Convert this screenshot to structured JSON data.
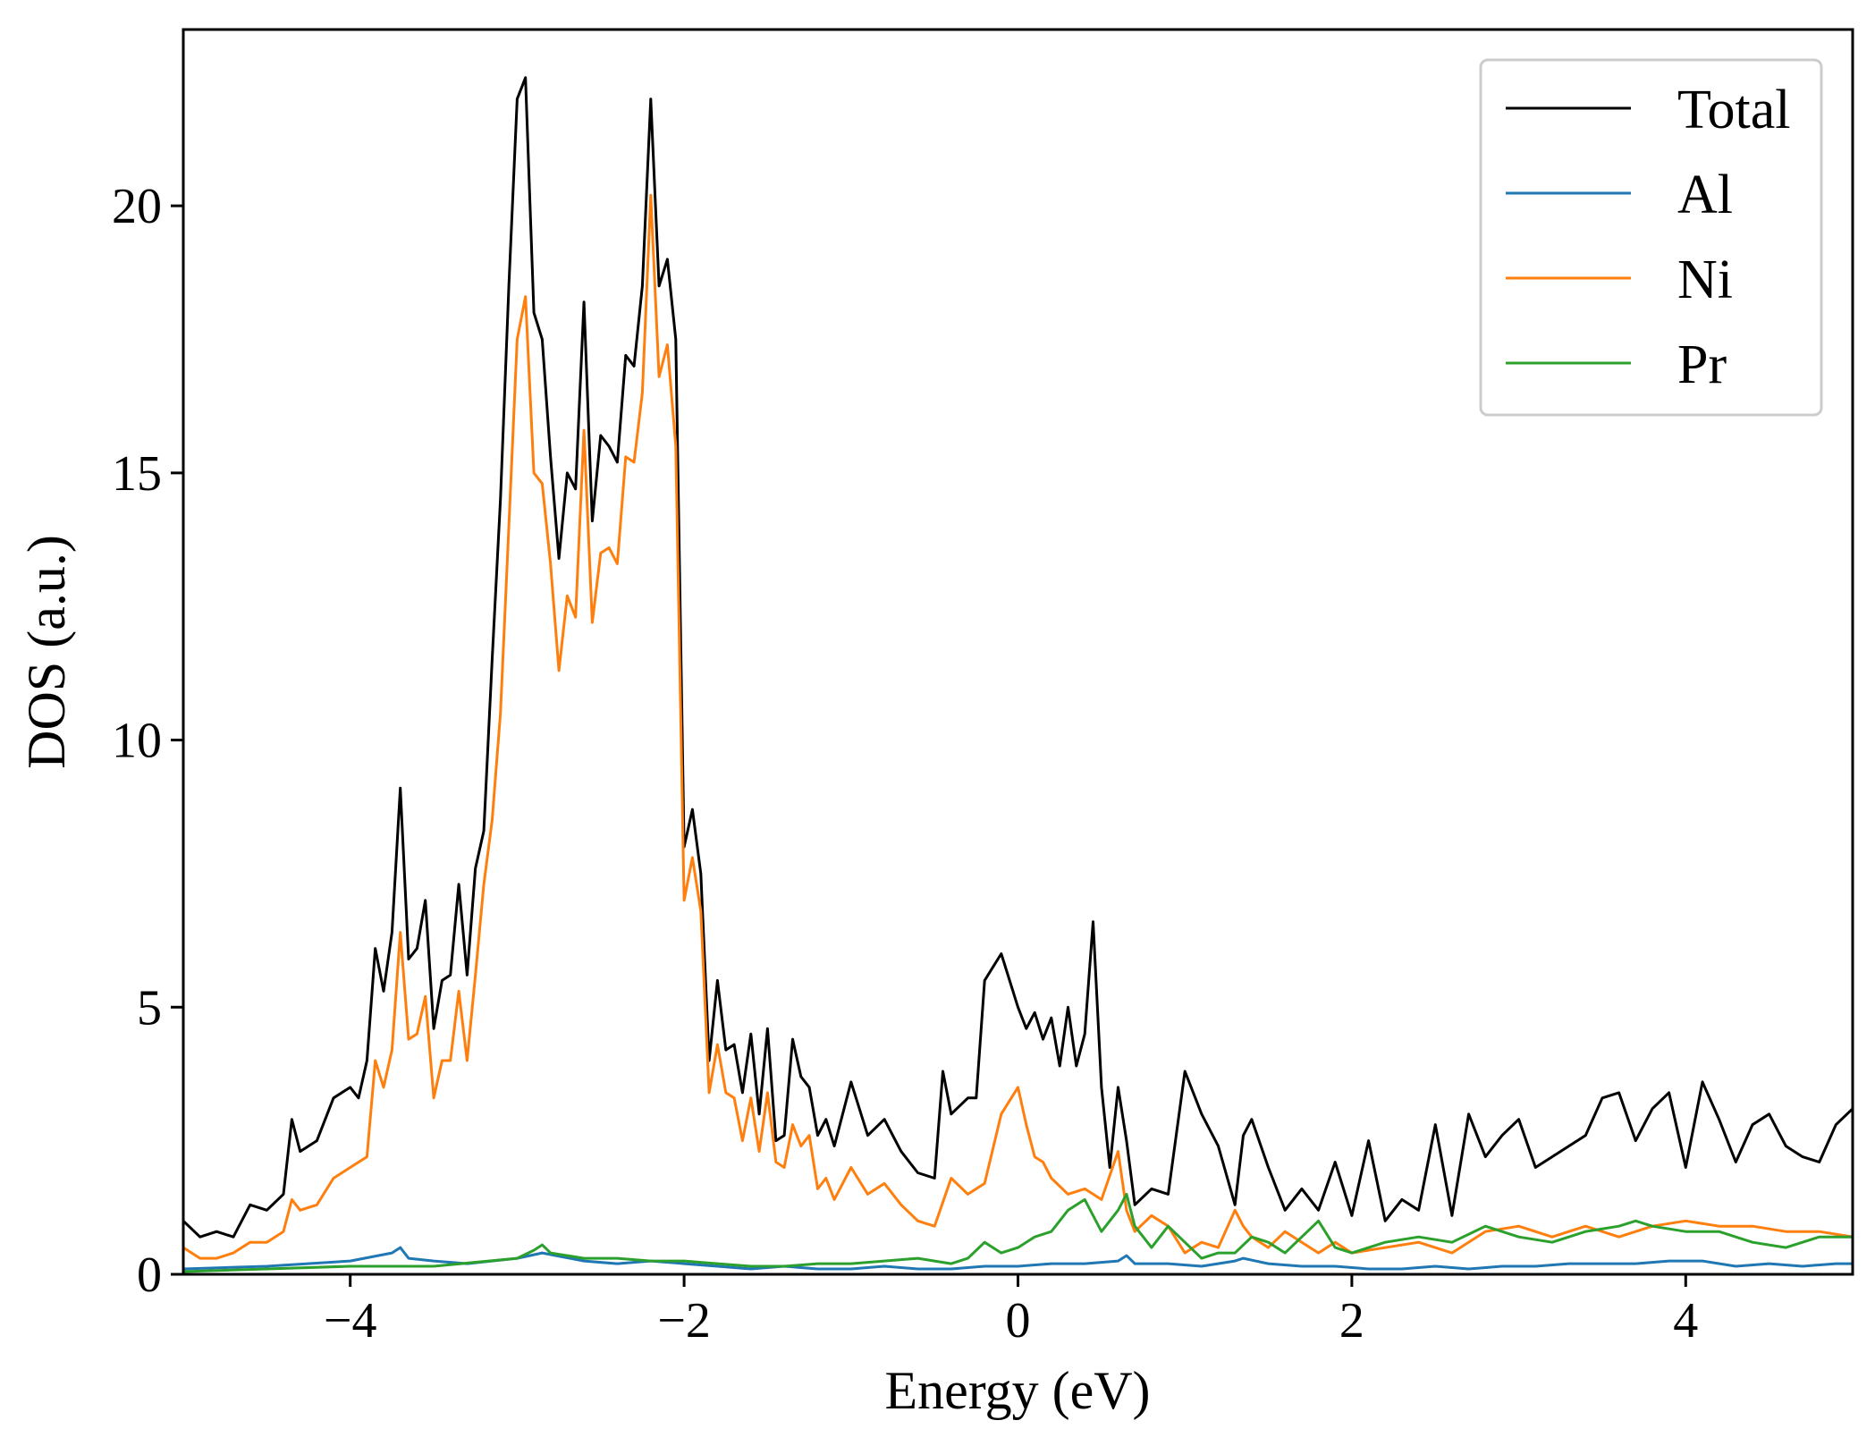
{
  "chart_data": {
    "type": "line",
    "xlabel": "Energy (eV)",
    "ylabel": "DOS (a.u.)",
    "xlim": [
      -5,
      5
    ],
    "ylim": [
      0,
      23.3
    ],
    "xticks": [
      -4,
      -2,
      0,
      2,
      4
    ],
    "xtick_labels": [
      "−4",
      "−2",
      "0",
      "2",
      "4"
    ],
    "yticks": [
      0,
      5,
      10,
      15,
      20
    ],
    "ytick_labels": [
      "0",
      "5",
      "10",
      "15",
      "20"
    ],
    "grid": false,
    "legend_position": "top-right",
    "series": [
      {
        "name": "Total",
        "color": "#000000",
        "x": [
          -5.0,
          -4.9,
          -4.8,
          -4.7,
          -4.6,
          -4.5,
          -4.4,
          -4.35,
          -4.3,
          -4.2,
          -4.1,
          -4.0,
          -3.95,
          -3.9,
          -3.85,
          -3.8,
          -3.75,
          -3.7,
          -3.65,
          -3.6,
          -3.55,
          -3.5,
          -3.45,
          -3.4,
          -3.35,
          -3.3,
          -3.25,
          -3.2,
          -3.15,
          -3.1,
          -3.05,
          -3.0,
          -2.95,
          -2.9,
          -2.85,
          -2.8,
          -2.75,
          -2.7,
          -2.65,
          -2.6,
          -2.55,
          -2.5,
          -2.45,
          -2.4,
          -2.35,
          -2.3,
          -2.25,
          -2.2,
          -2.15,
          -2.1,
          -2.05,
          -2.0,
          -1.95,
          -1.9,
          -1.85,
          -1.8,
          -1.75,
          -1.7,
          -1.65,
          -1.6,
          -1.55,
          -1.5,
          -1.45,
          -1.4,
          -1.35,
          -1.3,
          -1.25,
          -1.2,
          -1.15,
          -1.1,
          -1.0,
          -0.9,
          -0.8,
          -0.7,
          -0.6,
          -0.5,
          -0.45,
          -0.4,
          -0.3,
          -0.25,
          -0.2,
          -0.1,
          0.0,
          0.05,
          0.1,
          0.15,
          0.2,
          0.25,
          0.3,
          0.35,
          0.4,
          0.45,
          0.5,
          0.55,
          0.6,
          0.65,
          0.7,
          0.8,
          0.9,
          1.0,
          1.1,
          1.2,
          1.3,
          1.35,
          1.4,
          1.5,
          1.6,
          1.7,
          1.8,
          1.9,
          2.0,
          2.1,
          2.2,
          2.3,
          2.4,
          2.5,
          2.6,
          2.7,
          2.8,
          2.9,
          3.0,
          3.1,
          3.2,
          3.3,
          3.4,
          3.5,
          3.6,
          3.7,
          3.8,
          3.9,
          4.0,
          4.1,
          4.2,
          4.3,
          4.4,
          4.5,
          4.6,
          4.7,
          4.8,
          4.9,
          5.0
        ],
        "y": [
          1.0,
          0.7,
          0.8,
          0.7,
          1.3,
          1.2,
          1.5,
          2.9,
          2.3,
          2.5,
          3.3,
          3.5,
          3.3,
          4.0,
          6.1,
          5.3,
          6.4,
          9.1,
          5.9,
          6.1,
          7.0,
          4.6,
          5.5,
          5.6,
          7.3,
          5.6,
          7.6,
          8.3,
          11.5,
          14.5,
          18.5,
          22.0,
          22.4,
          18.0,
          17.5,
          15.3,
          13.4,
          15.0,
          14.7,
          18.2,
          14.1,
          15.7,
          15.5,
          15.2,
          17.2,
          17.0,
          18.5,
          22.0,
          18.5,
          19.0,
          17.5,
          8.0,
          8.7,
          7.5,
          4.0,
          5.5,
          4.2,
          4.3,
          3.4,
          4.5,
          3.0,
          4.6,
          2.5,
          2.6,
          4.4,
          3.7,
          3.5,
          2.6,
          2.9,
          2.4,
          3.6,
          2.6,
          2.9,
          2.3,
          1.9,
          1.8,
          3.8,
          3.0,
          3.3,
          3.3,
          5.5,
          6.0,
          5.0,
          4.6,
          4.9,
          4.4,
          4.8,
          3.9,
          5.0,
          3.9,
          4.5,
          6.6,
          3.5,
          2.0,
          3.5,
          2.5,
          1.3,
          1.6,
          1.5,
          3.8,
          3.0,
          2.4,
          1.3,
          2.6,
          2.9,
          2.0,
          1.2,
          1.6,
          1.2,
          2.1,
          1.1,
          2.5,
          1.0,
          1.4,
          1.2,
          2.8,
          1.1,
          3.0,
          2.2,
          2.6,
          2.9,
          2.0,
          2.2,
          2.4,
          2.6,
          3.3,
          3.4,
          2.5,
          3.1,
          3.4,
          2.0,
          3.6,
          2.9,
          2.1,
          2.8,
          3.0,
          2.4,
          2.2,
          2.1,
          2.8,
          3.1
        ],
        "ignore": false
      },
      {
        "name": "Al",
        "color": "#1f77b4",
        "x": [
          -5.0,
          -4.5,
          -4.0,
          -3.75,
          -3.7,
          -3.65,
          -3.5,
          -3.3,
          -3.0,
          -2.85,
          -2.6,
          -2.4,
          -2.2,
          -2.0,
          -1.8,
          -1.6,
          -1.4,
          -1.2,
          -1.0,
          -0.8,
          -0.6,
          -0.4,
          -0.2,
          0.0,
          0.2,
          0.4,
          0.6,
          0.65,
          0.7,
          0.9,
          1.1,
          1.3,
          1.35,
          1.5,
          1.7,
          1.9,
          2.1,
          2.3,
          2.5,
          2.7,
          2.9,
          3.1,
          3.3,
          3.5,
          3.7,
          3.9,
          4.1,
          4.3,
          4.5,
          4.7,
          4.9,
          5.0
        ],
        "y": [
          0.1,
          0.15,
          0.25,
          0.4,
          0.5,
          0.3,
          0.25,
          0.2,
          0.3,
          0.4,
          0.25,
          0.2,
          0.25,
          0.2,
          0.15,
          0.1,
          0.15,
          0.1,
          0.1,
          0.15,
          0.1,
          0.1,
          0.15,
          0.15,
          0.2,
          0.2,
          0.25,
          0.35,
          0.2,
          0.2,
          0.15,
          0.25,
          0.3,
          0.2,
          0.15,
          0.15,
          0.1,
          0.1,
          0.15,
          0.1,
          0.15,
          0.15,
          0.2,
          0.2,
          0.2,
          0.25,
          0.25,
          0.15,
          0.2,
          0.15,
          0.2,
          0.2
        ],
        "ignore": false
      },
      {
        "name": "Ni",
        "color": "#ff7f0e",
        "x": [
          -5.0,
          -4.9,
          -4.8,
          -4.7,
          -4.6,
          -4.5,
          -4.4,
          -4.35,
          -4.3,
          -4.2,
          -4.1,
          -4.0,
          -3.9,
          -3.85,
          -3.8,
          -3.75,
          -3.7,
          -3.65,
          -3.6,
          -3.55,
          -3.5,
          -3.45,
          -3.4,
          -3.35,
          -3.3,
          -3.25,
          -3.2,
          -3.15,
          -3.1,
          -3.05,
          -3.0,
          -2.95,
          -2.9,
          -2.85,
          -2.8,
          -2.75,
          -2.7,
          -2.65,
          -2.6,
          -2.55,
          -2.5,
          -2.45,
          -2.4,
          -2.35,
          -2.3,
          -2.25,
          -2.2,
          -2.15,
          -2.1,
          -2.05,
          -2.0,
          -1.95,
          -1.9,
          -1.85,
          -1.8,
          -1.75,
          -1.7,
          -1.65,
          -1.6,
          -1.55,
          -1.5,
          -1.45,
          -1.4,
          -1.35,
          -1.3,
          -1.25,
          -1.2,
          -1.15,
          -1.1,
          -1.0,
          -0.9,
          -0.8,
          -0.7,
          -0.6,
          -0.5,
          -0.4,
          -0.3,
          -0.25,
          -0.2,
          -0.1,
          0.0,
          0.05,
          0.1,
          0.15,
          0.2,
          0.3,
          0.4,
          0.5,
          0.6,
          0.65,
          0.7,
          0.8,
          0.9,
          1.0,
          1.1,
          1.2,
          1.3,
          1.35,
          1.4,
          1.5,
          1.6,
          1.7,
          1.8,
          1.9,
          2.0,
          2.2,
          2.4,
          2.6,
          2.8,
          3.0,
          3.2,
          3.4,
          3.6,
          3.8,
          4.0,
          4.2,
          4.4,
          4.6,
          4.8,
          5.0
        ],
        "y": [
          0.5,
          0.3,
          0.3,
          0.4,
          0.6,
          0.6,
          0.8,
          1.4,
          1.2,
          1.3,
          1.8,
          2.0,
          2.2,
          4.0,
          3.5,
          4.2,
          6.4,
          4.4,
          4.5,
          5.2,
          3.3,
          4.0,
          4.0,
          5.3,
          4.0,
          5.6,
          7.3,
          8.5,
          10.5,
          14.0,
          17.5,
          18.3,
          15.0,
          14.8,
          13.3,
          11.3,
          12.7,
          12.3,
          15.8,
          12.2,
          13.5,
          13.6,
          13.3,
          15.3,
          15.2,
          16.5,
          20.2,
          16.8,
          17.4,
          15.5,
          7.0,
          7.8,
          6.8,
          3.4,
          4.3,
          3.4,
          3.3,
          2.5,
          3.3,
          2.3,
          3.4,
          2.1,
          2.0,
          2.8,
          2.4,
          2.6,
          1.6,
          1.8,
          1.4,
          2.0,
          1.5,
          1.7,
          1.3,
          1.0,
          0.9,
          1.8,
          1.5,
          1.6,
          1.7,
          3.0,
          3.5,
          2.8,
          2.2,
          2.1,
          1.8,
          1.5,
          1.6,
          1.4,
          2.3,
          1.2,
          0.8,
          1.1,
          0.9,
          0.4,
          0.6,
          0.5,
          1.2,
          0.9,
          0.7,
          0.5,
          0.8,
          0.6,
          0.4,
          0.6,
          0.4,
          0.5,
          0.6,
          0.4,
          0.8,
          0.9,
          0.7,
          0.9,
          0.7,
          0.9,
          1.0,
          0.9,
          0.9,
          0.8,
          0.8,
          0.7
        ],
        "ignore": false
      },
      {
        "name": "Pr",
        "color": "#2ca02c",
        "x": [
          -5.0,
          -4.5,
          -4.0,
          -3.5,
          -3.0,
          -2.9,
          -2.85,
          -2.8,
          -2.6,
          -2.4,
          -2.2,
          -2.0,
          -1.8,
          -1.6,
          -1.4,
          -1.2,
          -1.0,
          -0.8,
          -0.6,
          -0.4,
          -0.3,
          -0.2,
          -0.1,
          0.0,
          0.1,
          0.2,
          0.3,
          0.4,
          0.5,
          0.6,
          0.65,
          0.7,
          0.8,
          0.9,
          1.0,
          1.1,
          1.2,
          1.3,
          1.4,
          1.5,
          1.6,
          1.7,
          1.8,
          1.9,
          2.0,
          2.2,
          2.4,
          2.6,
          2.8,
          3.0,
          3.2,
          3.4,
          3.6,
          3.7,
          3.8,
          4.0,
          4.2,
          4.4,
          4.6,
          4.8,
          5.0
        ],
        "y": [
          0.05,
          0.1,
          0.15,
          0.15,
          0.3,
          0.45,
          0.55,
          0.4,
          0.3,
          0.3,
          0.25,
          0.25,
          0.2,
          0.15,
          0.15,
          0.2,
          0.2,
          0.25,
          0.3,
          0.2,
          0.3,
          0.6,
          0.4,
          0.5,
          0.7,
          0.8,
          1.2,
          1.4,
          0.8,
          1.2,
          1.5,
          0.9,
          0.5,
          0.9,
          0.6,
          0.3,
          0.4,
          0.4,
          0.7,
          0.6,
          0.4,
          0.7,
          1.0,
          0.5,
          0.4,
          0.6,
          0.7,
          0.6,
          0.9,
          0.7,
          0.6,
          0.8,
          0.9,
          1.0,
          0.9,
          0.8,
          0.8,
          0.6,
          0.5,
          0.7,
          0.7
        ],
        "ignore": false
      }
    ]
  }
}
